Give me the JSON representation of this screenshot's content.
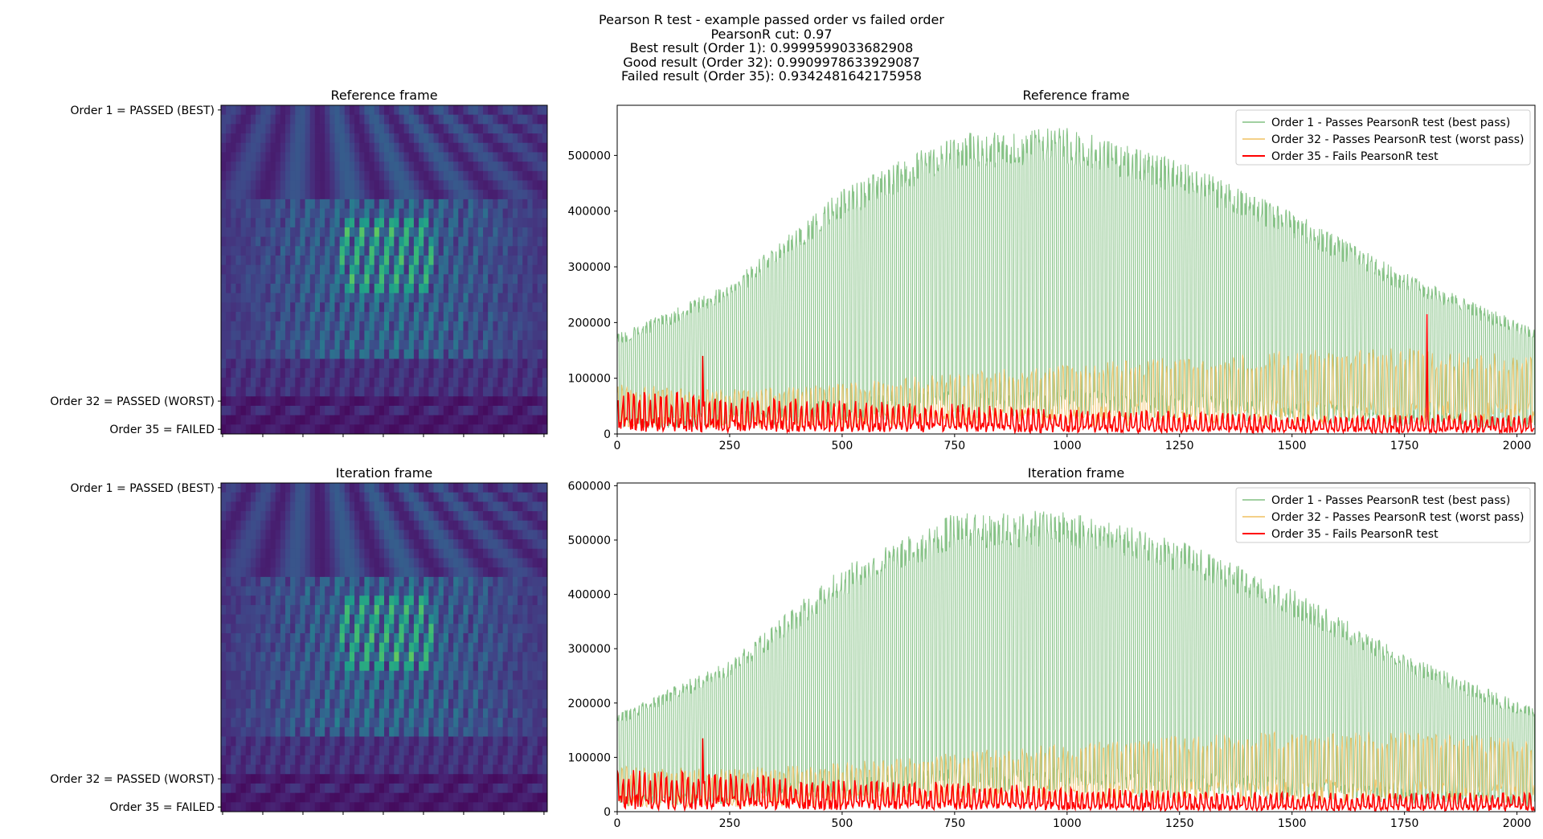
{
  "figure": {
    "title_lines": [
      "Pearson R test - example passed order vs failed order",
      "PearsonR cut: 0.97",
      "Best result (Order 1): 0.9999599033682908",
      "Good result (Order 32): 0.9909978633929087",
      "Failed result (Order 35): 0.9342481642175958"
    ]
  },
  "colors": {
    "order1": "#82c082",
    "order32": "#f0c060",
    "order35": "#ff0000",
    "heatmap_low": "#440154",
    "heatmap_mid": "#21918c",
    "heatmap_high": "#fde725"
  },
  "chart_data": [
    {
      "type": "heatmap",
      "title": "Reference frame",
      "colormap": "viridis",
      "ytick_labels": [
        "Order 1 = PASSED (BEST)",
        "Order 32 = PASSED (WORST)",
        "Order 35 = FAILED"
      ],
      "ytick_orders": [
        1,
        32,
        35
      ],
      "n_orders": 35,
      "x_ticks_count": 9
    },
    {
      "type": "line",
      "title": "Reference frame",
      "xlim": [
        0,
        2040
      ],
      "ylim": [
        0,
        590000
      ],
      "xticks": [
        0,
        250,
        500,
        750,
        1000,
        1250,
        1500,
        1750,
        2000
      ],
      "xtick_labels": [
        "0",
        "250",
        "500",
        "750",
        "1000",
        "1250",
        "1500",
        "1750",
        "2000"
      ],
      "yticks": [
        0,
        100000,
        200000,
        300000,
        400000,
        500000
      ],
      "ytick_labels": [
        "0",
        "100000",
        "200000",
        "300000",
        "400000",
        "500000"
      ],
      "legend_position": "top-right",
      "series": [
        {
          "name": "Order 1 - Passes PearsonR test (best pass)",
          "envelope": {
            "x": [
              0,
              250,
              500,
              750,
              1000,
              1250,
              1500,
              1750,
              2040
            ],
            "y": [
              180000,
              270000,
              440000,
              540000,
              550000,
              490000,
              400000,
              290000,
              190000
            ]
          }
        },
        {
          "name": "Order 32 - Passes PearsonR test (worst pass)",
          "envelope": {
            "x": [
              0,
              250,
              500,
              750,
              1000,
              1250,
              1500,
              1750,
              2040
            ],
            "y": [
              90000,
              80000,
              90000,
              110000,
              125000,
              140000,
              150000,
              155000,
              140000
            ]
          }
        },
        {
          "name": "Order 35 - Fails PearsonR test",
          "envelope": {
            "x": [
              0,
              250,
              500,
              750,
              1000,
              1250,
              1500,
              1750,
              2040
            ],
            "y": [
              80000,
              70000,
              60000,
              55000,
              45000,
              40000,
              35000,
              35000,
              35000
            ]
          },
          "spikes": [
            {
              "x": 190,
              "y": 140000
            },
            {
              "x": 1800,
              "y": 215000
            }
          ]
        }
      ]
    },
    {
      "type": "heatmap",
      "title": "Iteration frame",
      "colormap": "viridis",
      "ytick_labels": [
        "Order 1 = PASSED (BEST)",
        "Order 32 = PASSED (WORST)",
        "Order 35 = FAILED"
      ],
      "ytick_orders": [
        1,
        32,
        35
      ],
      "n_orders": 35,
      "x_ticks_count": 9
    },
    {
      "type": "line",
      "title": "Iteration frame",
      "xlim": [
        0,
        2040
      ],
      "ylim": [
        0,
        605000
      ],
      "xticks": [
        0,
        250,
        500,
        750,
        1000,
        1250,
        1500,
        1750,
        2000
      ],
      "xtick_labels": [
        "0",
        "250",
        "500",
        "750",
        "1000",
        "1250",
        "1500",
        "1750",
        "2000"
      ],
      "yticks": [
        0,
        100000,
        200000,
        300000,
        400000,
        500000,
        600000
      ],
      "ytick_labels": [
        "0",
        "100000",
        "200000",
        "300000",
        "400000",
        "500000",
        "600000"
      ],
      "legend_position": "top-right",
      "series": [
        {
          "name": "Order 1 - Passes PearsonR test (best pass)",
          "envelope": {
            "x": [
              0,
              250,
              500,
              750,
              1000,
              1250,
              1500,
              1750,
              2040
            ],
            "y": [
              180000,
              280000,
              450000,
              550000,
              555000,
              500000,
              410000,
              290000,
              190000
            ]
          }
        },
        {
          "name": "Order 32 - Passes PearsonR test (worst pass)",
          "envelope": {
            "x": [
              0,
              250,
              500,
              750,
              1000,
              1250,
              1500,
              1750,
              2040
            ],
            "y": [
              85000,
              80000,
              90000,
              110000,
              125000,
              140000,
              150000,
              150000,
              135000
            ]
          }
        },
        {
          "name": "Order 35 - Fails PearsonR test",
          "envelope": {
            "x": [
              0,
              250,
              500,
              750,
              1000,
              1250,
              1500,
              1750,
              2040
            ],
            "y": [
              80000,
              70000,
              60000,
              55000,
              45000,
              40000,
              35000,
              35000,
              35000
            ]
          },
          "spikes": [
            {
              "x": 190,
              "y": 135000
            }
          ]
        }
      ]
    }
  ]
}
